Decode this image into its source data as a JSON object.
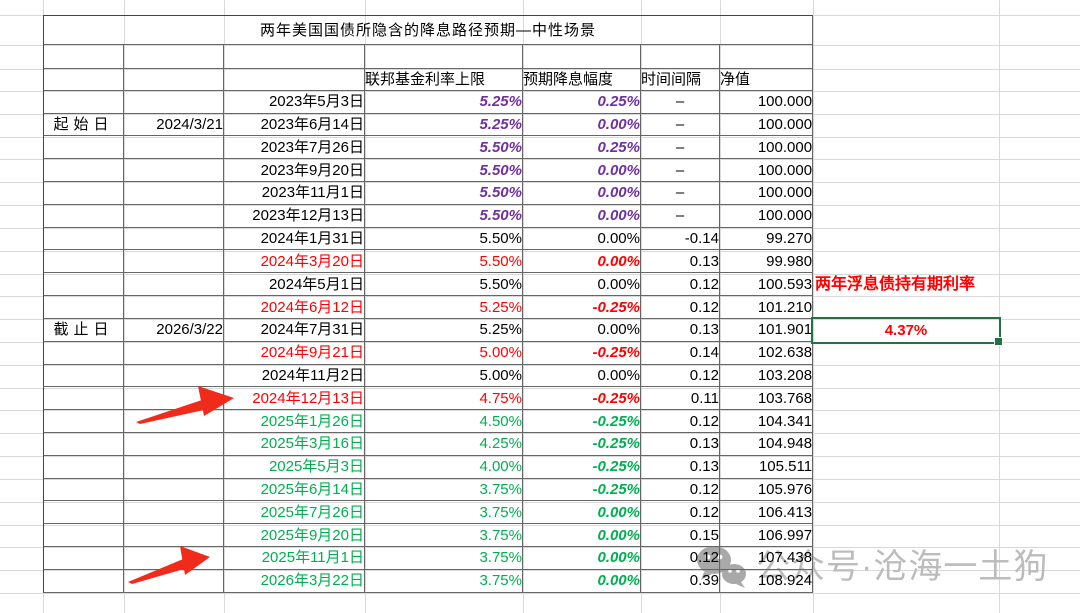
{
  "title": "两年美国国债所隐含的降息路径预期—中性场景",
  "table": {
    "headers": {
      "rate": "联邦基金利率上限",
      "cut": "预期降息幅度",
      "interval": "时间间隔",
      "nav": "净值"
    },
    "rows": [
      {
        "date": "2023年5月3日",
        "rate": "5.25%",
        "cut": "0.25%",
        "interval": "–",
        "nav": "100.000",
        "color": "purple"
      },
      {
        "date": "2023年6月14日",
        "rate": "5.25%",
        "cut": "0.00%",
        "interval": "–",
        "nav": "100.000",
        "color": "purple",
        "side_label": "起始日",
        "side_date": "2024/3/21"
      },
      {
        "date": "2023年7月26日",
        "rate": "5.50%",
        "cut": "0.25%",
        "interval": "–",
        "nav": "100.000",
        "color": "purple"
      },
      {
        "date": "2023年9月20日",
        "rate": "5.50%",
        "cut": "0.00%",
        "interval": "–",
        "nav": "100.000",
        "color": "purple"
      },
      {
        "date": "2023年11月1日",
        "rate": "5.50%",
        "cut": "0.00%",
        "interval": "–",
        "nav": "100.000",
        "color": "purple"
      },
      {
        "date": "2023年12月13日",
        "rate": "5.50%",
        "cut": "0.00%",
        "interval": "–",
        "nav": "100.000",
        "color": "purple"
      },
      {
        "date": "2024年1月31日",
        "rate": "5.50%",
        "cut": "0.00%",
        "interval": "-0.14",
        "nav": "99.270",
        "color": "black"
      },
      {
        "date": "2024年3月20日",
        "rate": "5.50%",
        "cut": "0.00%",
        "interval": "0.13",
        "nav": "99.980",
        "color": "red"
      },
      {
        "date": "2024年5月1日",
        "rate": "5.50%",
        "cut": "0.00%",
        "interval": "0.12",
        "nav": "100.593",
        "color": "black"
      },
      {
        "date": "2024年6月12日",
        "rate": "5.25%",
        "cut": "-0.25%",
        "interval": "0.12",
        "nav": "101.210",
        "color": "red"
      },
      {
        "date": "2024年7月31日",
        "rate": "5.25%",
        "cut": "0.00%",
        "interval": "0.13",
        "nav": "101.901",
        "color": "black",
        "side_label": "截止日",
        "side_date": "2026/3/22"
      },
      {
        "date": "2024年9月21日",
        "rate": "5.00%",
        "cut": "-0.25%",
        "interval": "0.14",
        "nav": "102.638",
        "color": "red"
      },
      {
        "date": "2024年11月2日",
        "rate": "5.00%",
        "cut": "0.00%",
        "interval": "0.12",
        "nav": "103.208",
        "color": "black"
      },
      {
        "date": "2024年12月13日",
        "rate": "4.75%",
        "cut": "-0.25%",
        "interval": "0.11",
        "nav": "103.768",
        "color": "red"
      },
      {
        "date": "2025年1月26日",
        "rate": "4.50%",
        "cut": "-0.25%",
        "interval": "0.12",
        "nav": "104.341",
        "color": "green"
      },
      {
        "date": "2025年3月16日",
        "rate": "4.25%",
        "cut": "-0.25%",
        "interval": "0.13",
        "nav": "104.948",
        "color": "green"
      },
      {
        "date": "2025年5月3日",
        "rate": "4.00%",
        "cut": "-0.25%",
        "interval": "0.13",
        "nav": "105.511",
        "color": "green"
      },
      {
        "date": "2025年6月14日",
        "rate": "3.75%",
        "cut": "-0.25%",
        "interval": "0.12",
        "nav": "105.976",
        "color": "green"
      },
      {
        "date": "2025年7月26日",
        "rate": "3.75%",
        "cut": "0.00%",
        "interval": "0.12",
        "nav": "106.413",
        "color": "green",
        "highlight": true
      },
      {
        "date": "2025年9月20日",
        "rate": "3.75%",
        "cut": "0.00%",
        "interval": "0.15",
        "nav": "106.997",
        "color": "green"
      },
      {
        "date": "2025年11月1日",
        "rate": "3.75%",
        "cut": "0.00%",
        "interval": "0.12",
        "nav": "107.438",
        "color": "green"
      },
      {
        "date": "2026年3月22日",
        "rate": "3.75%",
        "cut": "0.00%",
        "interval": "0.39",
        "nav": "108.924",
        "color": "green"
      }
    ]
  },
  "annotation": {
    "note": "两年浮息债持有期利率",
    "value": "4.37%"
  },
  "watermark": {
    "text": "公众号·沧海一土狗"
  },
  "icons": {
    "watermark": "wechat-icon",
    "pointer": "red-arrow-icon"
  },
  "colors": {
    "purple": "#7030A0",
    "red": "#FF0000",
    "green": "#00B050",
    "highlight_yellow": "#FFFF00",
    "selection_green": "#217346",
    "arrow_red": "#F02B1C"
  }
}
